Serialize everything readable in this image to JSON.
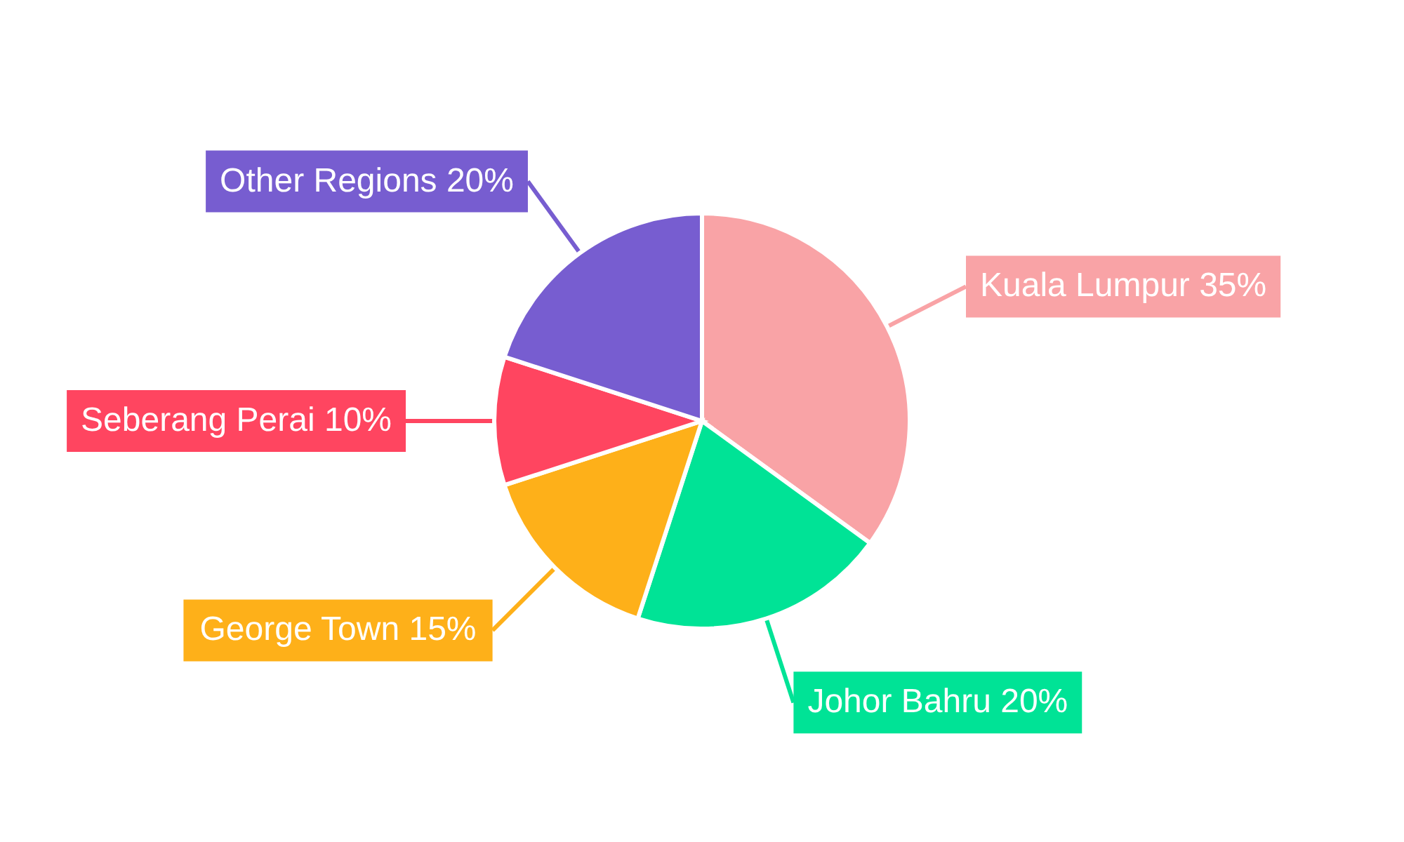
{
  "chart_data": {
    "type": "pie",
    "categories": [
      "Kuala Lumpur",
      "Johor Bahru",
      "George Town",
      "Seberang Perai",
      "Other Regions"
    ],
    "values": [
      35,
      20,
      15,
      10,
      20
    ],
    "value_labels": [
      "35%",
      "20%",
      "15%",
      "10%",
      "20%"
    ],
    "colors": [
      "#f9a3a6",
      "#00e396",
      "#feb019",
      "#ff4560",
      "#775dd0"
    ]
  }
}
